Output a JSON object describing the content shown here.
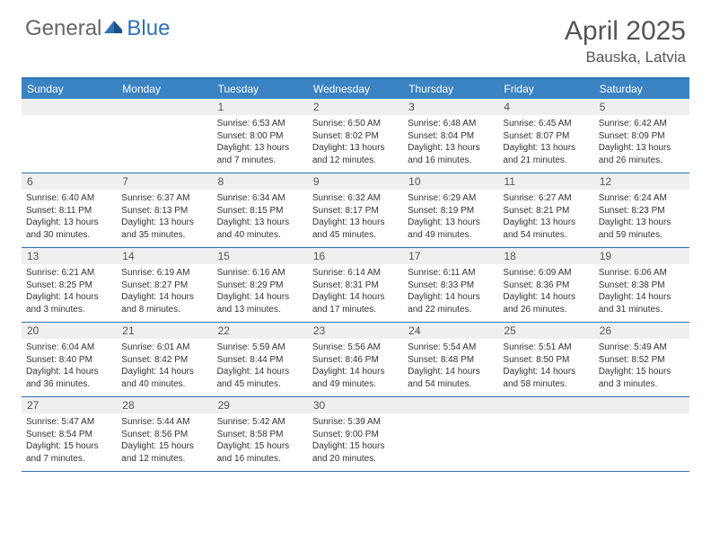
{
  "logo": {
    "text_general": "General",
    "text_blue": "Blue"
  },
  "header": {
    "title": "April 2025",
    "location": "Bauska, Latvia"
  },
  "colors": {
    "header_bar": "#3b84c4",
    "border": "#2e72b8",
    "daynum_bg": "#efefef",
    "text": "#333333",
    "title_text": "#555555",
    "logo_gray": "#666666",
    "logo_blue": "#2e72b8",
    "background": "#ffffff"
  },
  "day_names": [
    "Sunday",
    "Monday",
    "Tuesday",
    "Wednesday",
    "Thursday",
    "Friday",
    "Saturday"
  ],
  "weeks": [
    [
      {
        "n": "",
        "sunrise": "",
        "sunset": "",
        "daylight": ""
      },
      {
        "n": "",
        "sunrise": "",
        "sunset": "",
        "daylight": ""
      },
      {
        "n": "1",
        "sunrise": "Sunrise: 6:53 AM",
        "sunset": "Sunset: 8:00 PM",
        "daylight": "Daylight: 13 hours and 7 minutes."
      },
      {
        "n": "2",
        "sunrise": "Sunrise: 6:50 AM",
        "sunset": "Sunset: 8:02 PM",
        "daylight": "Daylight: 13 hours and 12 minutes."
      },
      {
        "n": "3",
        "sunrise": "Sunrise: 6:48 AM",
        "sunset": "Sunset: 8:04 PM",
        "daylight": "Daylight: 13 hours and 16 minutes."
      },
      {
        "n": "4",
        "sunrise": "Sunrise: 6:45 AM",
        "sunset": "Sunset: 8:07 PM",
        "daylight": "Daylight: 13 hours and 21 minutes."
      },
      {
        "n": "5",
        "sunrise": "Sunrise: 6:42 AM",
        "sunset": "Sunset: 8:09 PM",
        "daylight": "Daylight: 13 hours and 26 minutes."
      }
    ],
    [
      {
        "n": "6",
        "sunrise": "Sunrise: 6:40 AM",
        "sunset": "Sunset: 8:11 PM",
        "daylight": "Daylight: 13 hours and 30 minutes."
      },
      {
        "n": "7",
        "sunrise": "Sunrise: 6:37 AM",
        "sunset": "Sunset: 8:13 PM",
        "daylight": "Daylight: 13 hours and 35 minutes."
      },
      {
        "n": "8",
        "sunrise": "Sunrise: 6:34 AM",
        "sunset": "Sunset: 8:15 PM",
        "daylight": "Daylight: 13 hours and 40 minutes."
      },
      {
        "n": "9",
        "sunrise": "Sunrise: 6:32 AM",
        "sunset": "Sunset: 8:17 PM",
        "daylight": "Daylight: 13 hours and 45 minutes."
      },
      {
        "n": "10",
        "sunrise": "Sunrise: 6:29 AM",
        "sunset": "Sunset: 8:19 PM",
        "daylight": "Daylight: 13 hours and 49 minutes."
      },
      {
        "n": "11",
        "sunrise": "Sunrise: 6:27 AM",
        "sunset": "Sunset: 8:21 PM",
        "daylight": "Daylight: 13 hours and 54 minutes."
      },
      {
        "n": "12",
        "sunrise": "Sunrise: 6:24 AM",
        "sunset": "Sunset: 8:23 PM",
        "daylight": "Daylight: 13 hours and 59 minutes."
      }
    ],
    [
      {
        "n": "13",
        "sunrise": "Sunrise: 6:21 AM",
        "sunset": "Sunset: 8:25 PM",
        "daylight": "Daylight: 14 hours and 3 minutes."
      },
      {
        "n": "14",
        "sunrise": "Sunrise: 6:19 AM",
        "sunset": "Sunset: 8:27 PM",
        "daylight": "Daylight: 14 hours and 8 minutes."
      },
      {
        "n": "15",
        "sunrise": "Sunrise: 6:16 AM",
        "sunset": "Sunset: 8:29 PM",
        "daylight": "Daylight: 14 hours and 13 minutes."
      },
      {
        "n": "16",
        "sunrise": "Sunrise: 6:14 AM",
        "sunset": "Sunset: 8:31 PM",
        "daylight": "Daylight: 14 hours and 17 minutes."
      },
      {
        "n": "17",
        "sunrise": "Sunrise: 6:11 AM",
        "sunset": "Sunset: 8:33 PM",
        "daylight": "Daylight: 14 hours and 22 minutes."
      },
      {
        "n": "18",
        "sunrise": "Sunrise: 6:09 AM",
        "sunset": "Sunset: 8:36 PM",
        "daylight": "Daylight: 14 hours and 26 minutes."
      },
      {
        "n": "19",
        "sunrise": "Sunrise: 6:06 AM",
        "sunset": "Sunset: 8:38 PM",
        "daylight": "Daylight: 14 hours and 31 minutes."
      }
    ],
    [
      {
        "n": "20",
        "sunrise": "Sunrise: 6:04 AM",
        "sunset": "Sunset: 8:40 PM",
        "daylight": "Daylight: 14 hours and 36 minutes."
      },
      {
        "n": "21",
        "sunrise": "Sunrise: 6:01 AM",
        "sunset": "Sunset: 8:42 PM",
        "daylight": "Daylight: 14 hours and 40 minutes."
      },
      {
        "n": "22",
        "sunrise": "Sunrise: 5:59 AM",
        "sunset": "Sunset: 8:44 PM",
        "daylight": "Daylight: 14 hours and 45 minutes."
      },
      {
        "n": "23",
        "sunrise": "Sunrise: 5:56 AM",
        "sunset": "Sunset: 8:46 PM",
        "daylight": "Daylight: 14 hours and 49 minutes."
      },
      {
        "n": "24",
        "sunrise": "Sunrise: 5:54 AM",
        "sunset": "Sunset: 8:48 PM",
        "daylight": "Daylight: 14 hours and 54 minutes."
      },
      {
        "n": "25",
        "sunrise": "Sunrise: 5:51 AM",
        "sunset": "Sunset: 8:50 PM",
        "daylight": "Daylight: 14 hours and 58 minutes."
      },
      {
        "n": "26",
        "sunrise": "Sunrise: 5:49 AM",
        "sunset": "Sunset: 8:52 PM",
        "daylight": "Daylight: 15 hours and 3 minutes."
      }
    ],
    [
      {
        "n": "27",
        "sunrise": "Sunrise: 5:47 AM",
        "sunset": "Sunset: 8:54 PM",
        "daylight": "Daylight: 15 hours and 7 minutes."
      },
      {
        "n": "28",
        "sunrise": "Sunrise: 5:44 AM",
        "sunset": "Sunset: 8:56 PM",
        "daylight": "Daylight: 15 hours and 12 minutes."
      },
      {
        "n": "29",
        "sunrise": "Sunrise: 5:42 AM",
        "sunset": "Sunset: 8:58 PM",
        "daylight": "Daylight: 15 hours and 16 minutes."
      },
      {
        "n": "30",
        "sunrise": "Sunrise: 5:39 AM",
        "sunset": "Sunset: 9:00 PM",
        "daylight": "Daylight: 15 hours and 20 minutes."
      },
      {
        "n": "",
        "sunrise": "",
        "sunset": "",
        "daylight": ""
      },
      {
        "n": "",
        "sunrise": "",
        "sunset": "",
        "daylight": ""
      },
      {
        "n": "",
        "sunrise": "",
        "sunset": "",
        "daylight": ""
      }
    ]
  ]
}
